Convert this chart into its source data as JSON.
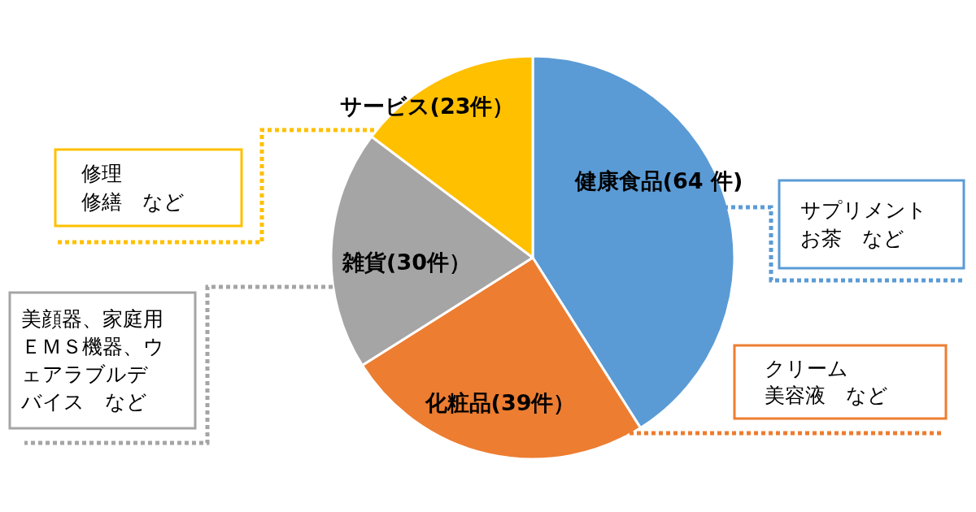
{
  "chart_data": {
    "type": "pie",
    "categories": [
      "健康食品",
      "化粧品",
      "雑貨",
      "サービス"
    ],
    "values": [
      64,
      39,
      30,
      23
    ],
    "value_labels": [
      "(64 件)",
      "(39件）",
      "(30件）",
      "(23件）"
    ],
    "colors": [
      "#5b9bd5",
      "#ed7d31",
      "#a5a5a5",
      "#ffc000"
    ],
    "annotations": [
      "サプリメントお茶　など",
      "クリーム美容液　など",
      "美顔器、家庭用ＥＭＳ機器、ウェアラブルデバイス　など",
      "修理修繕　など"
    ]
  }
}
